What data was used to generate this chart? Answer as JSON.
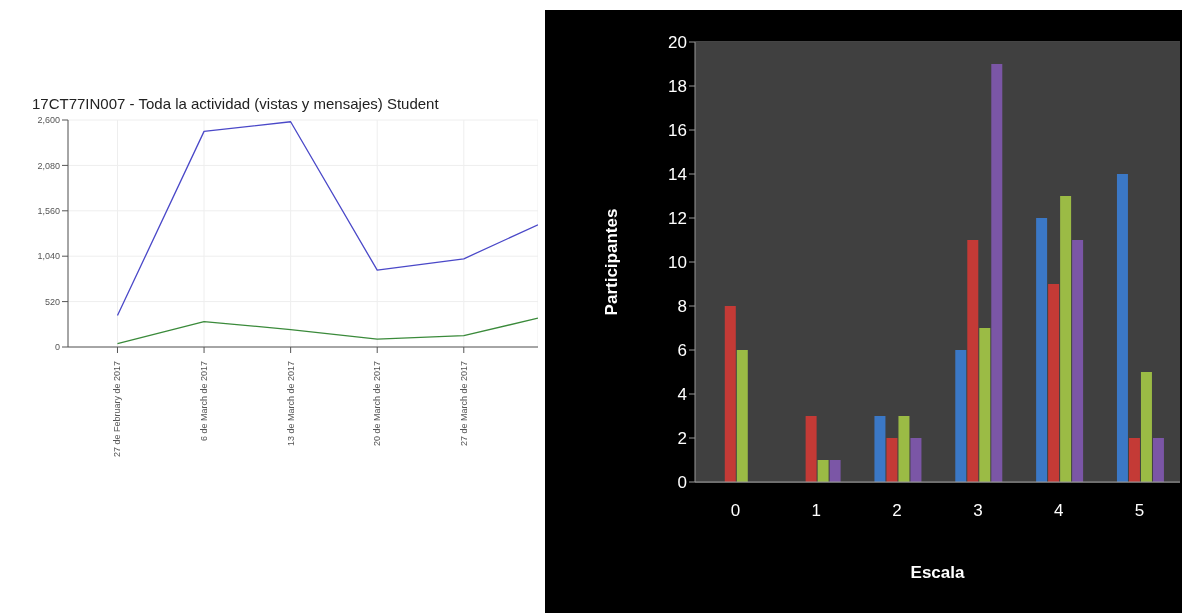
{
  "chart_data": [
    {
      "type": "line",
      "title": "17CT77IN007 - Toda la actividad (vistas y mensajes) Student",
      "x": [
        "2017-02-27",
        "2017-03-06",
        "2017-03-13",
        "2017-03-20",
        "2017-03-27",
        "2017-04-02"
      ],
      "series": [
        {
          "color": "#4a48c8",
          "values": [
            360,
            2470,
            2580,
            880,
            1010,
            1400
          ]
        },
        {
          "color": "#3a8a3a",
          "values": [
            40,
            290,
            200,
            90,
            130,
            330
          ]
        }
      ],
      "xlim": [
        "2017-02-23",
        "2017-04-02"
      ],
      "xticks": [
        {
          "value": "2017-02-27",
          "label": "27 de February de 2017"
        },
        {
          "value": "2017-03-06",
          "label": "6 de March de 2017"
        },
        {
          "value": "2017-03-13",
          "label": "13 de March de 2017"
        },
        {
          "value": "2017-03-20",
          "label": "20 de March de 2017"
        },
        {
          "value": "2017-03-27",
          "label": "27 de March de 2017"
        }
      ],
      "ylim": [
        0,
        2600
      ],
      "yticks": [
        0,
        520,
        {
          "value": 1040,
          "label": "1,040"
        },
        {
          "value": 1560,
          "label": "1,560"
        },
        {
          "value": 2080,
          "label": "2,080"
        },
        {
          "value": 2600,
          "label": "2,600"
        }
      ],
      "grid": true,
      "marker": "none",
      "line_style": "solid"
    },
    {
      "type": "bar",
      "xlabel": "Escala",
      "ylabel": "Participantes",
      "categories": [
        "0",
        "1",
        "2",
        "3",
        "4",
        "5"
      ],
      "series": [
        {
          "color": "#3b78c6",
          "values": [
            0,
            0,
            3,
            6,
            12,
            14
          ]
        },
        {
          "color": "#c43a36",
          "values": [
            8,
            3,
            2,
            11,
            9,
            2
          ]
        },
        {
          "color": "#9bbb45",
          "values": [
            6,
            1,
            3,
            7,
            13,
            5
          ]
        },
        {
          "color": "#7b56a6",
          "values": [
            0,
            1,
            2,
            19,
            11,
            2
          ]
        }
      ],
      "ylim": [
        0,
        20
      ],
      "yticks": [
        0,
        2,
        4,
        6,
        8,
        10,
        12,
        14,
        16,
        18,
        20
      ],
      "grid": "y"
    }
  ]
}
